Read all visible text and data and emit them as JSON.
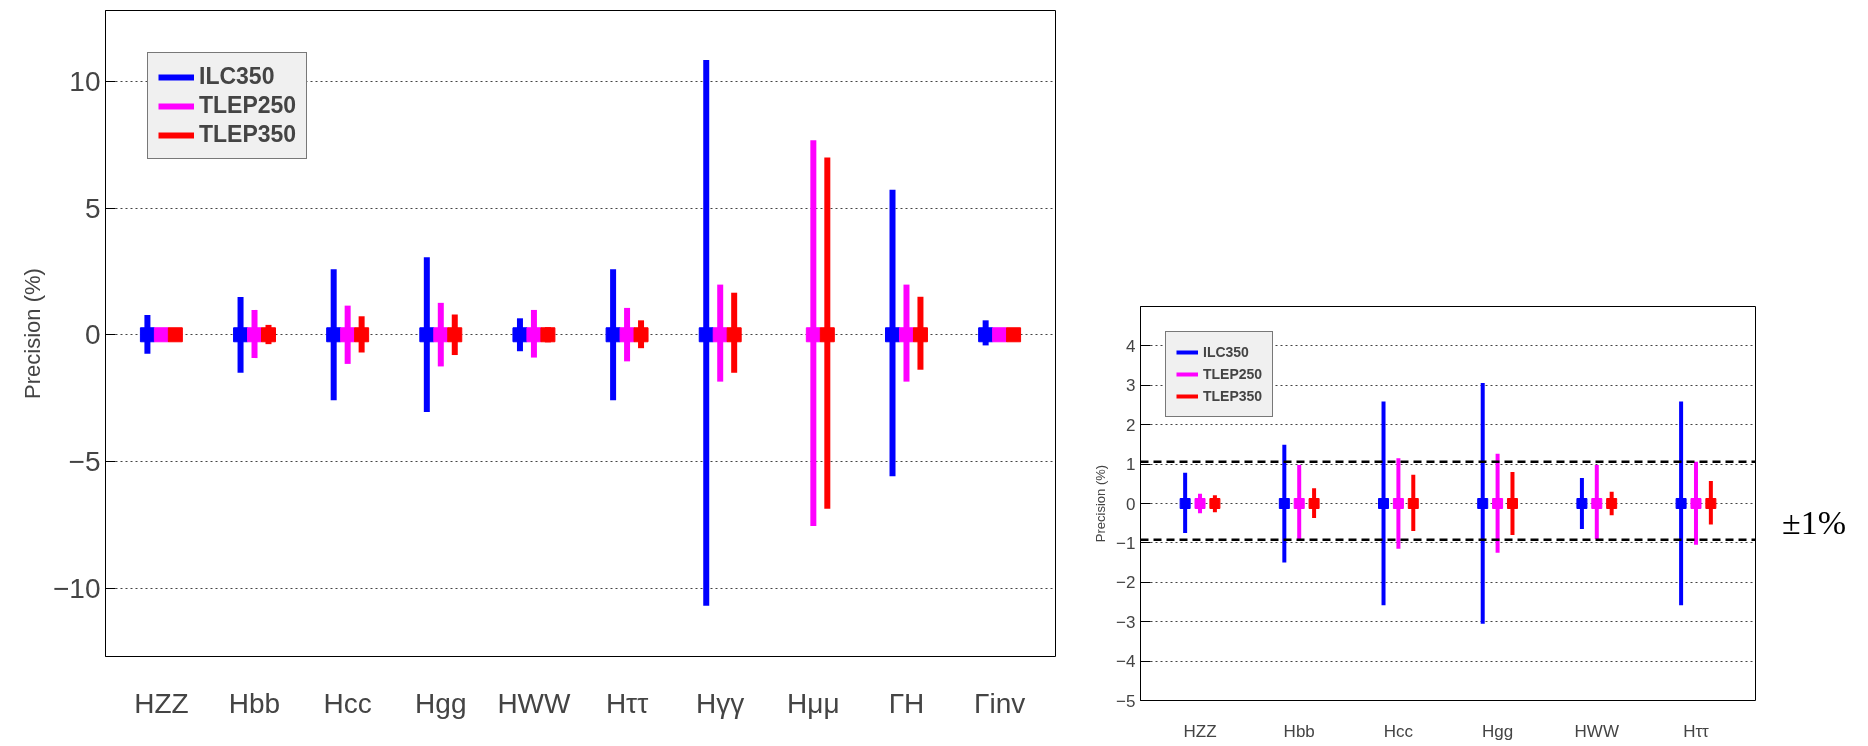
{
  "chart_data": [
    {
      "type": "scatter",
      "ylabel": "Precision (%)",
      "categories": [
        "HZZ",
        "Hbb",
        "Hcc",
        "Hgg",
        "HWW",
        "Hττ",
        "Hγγ",
        "Hμμ",
        "ΓH",
        "Γinv"
      ],
      "series": [
        {
          "name": "ILC350",
          "color": "#0000ff",
          "values": [
            0,
            0,
            0,
            0,
            0,
            0,
            0,
            null,
            0,
            0
          ],
          "errors": [
            [
              -0.75,
              0.78
            ],
            [
              -1.5,
              1.49
            ],
            [
              -2.58,
              2.59
            ],
            [
              -3.05,
              3.06
            ],
            [
              -0.65,
              0.65
            ],
            [
              -2.58,
              2.59
            ],
            [
              -10.7,
              10.85
            ],
            null,
            [
              -5.58,
              5.72
            ],
            [
              -0.42,
              0.57
            ]
          ]
        },
        {
          "name": "TLEP250",
          "color": "#ff00ff",
          "values": [
            0,
            0,
            0,
            0,
            0,
            0,
            0,
            0,
            0,
            0
          ],
          "errors": [
            null,
            [
              -0.92,
              0.98
            ],
            [
              -1.15,
              1.15
            ],
            [
              -1.25,
              1.26
            ],
            [
              -0.9,
              0.98
            ],
            [
              -1.05,
              1.06
            ],
            [
              -1.85,
              1.98
            ],
            [
              -7.55,
              7.68
            ],
            [
              -1.85,
              1.98
            ],
            null
          ]
        },
        {
          "name": "TLEP350",
          "color": "#ff0000",
          "values": [
            0,
            0,
            0,
            0,
            0,
            0,
            0,
            0,
            0,
            0
          ],
          "errors": [
            null,
            [
              -0.37,
              0.39
            ],
            [
              -0.7,
              0.73
            ],
            [
              -0.8,
              0.8
            ],
            [
              -0.3,
              0.3
            ],
            [
              -0.53,
              0.57
            ],
            [
              -1.5,
              1.66
            ],
            [
              -6.87,
              7.0
            ],
            [
              -1.38,
              1.5
            ],
            null
          ]
        }
      ],
      "ylim": [
        -12.7,
        12.8
      ],
      "yticks": [
        -10,
        -5,
        0,
        5,
        10
      ],
      "grid": "y",
      "legend": "top left",
      "marker": "square"
    },
    {
      "type": "scatter",
      "ylabel": "Precision (%)",
      "categories": [
        "HZZ",
        "Hbb",
        "Hcc",
        "Hgg",
        "HWW",
        "Hττ"
      ],
      "series": [
        {
          "name": "ILC350",
          "color": "#0000ff",
          "values": [
            0,
            0,
            0,
            0,
            0,
            0
          ],
          "errors": [
            [
              -0.75,
              0.78
            ],
            [
              -1.5,
              1.49
            ],
            [
              -2.58,
              2.59
            ],
            [
              -3.05,
              3.06
            ],
            [
              -0.65,
              0.65
            ],
            [
              -2.58,
              2.59
            ]
          ]
        },
        {
          "name": "TLEP250",
          "color": "#ff00ff",
          "values": [
            0,
            0,
            0,
            0,
            0,
            0
          ],
          "errors": [
            [
              -0.25,
              0.25
            ],
            [
              -0.92,
              0.98
            ],
            [
              -1.15,
              1.15
            ],
            [
              -1.25,
              1.26
            ],
            [
              -0.9,
              0.98
            ],
            [
              -1.05,
              1.06
            ]
          ]
        },
        {
          "name": "TLEP350",
          "color": "#ff0000",
          "values": [
            0,
            0,
            0,
            0,
            0,
            0
          ],
          "errors": [
            [
              -0.22,
              0.21
            ],
            [
              -0.37,
              0.39
            ],
            [
              -0.7,
              0.73
            ],
            [
              -0.8,
              0.8
            ],
            [
              -0.3,
              0.3
            ],
            [
              -0.53,
              0.57
            ]
          ]
        }
      ],
      "ylim": [
        -5,
        5
      ],
      "yticks": [
        -5,
        -4,
        -3,
        -2,
        -1,
        0,
        1,
        2,
        3,
        4
      ],
      "ref_lines": [
        {
          "axis": "y",
          "value": 1.06,
          "color": "#000000",
          "line_style": "dashed"
        },
        {
          "axis": "y",
          "value": -0.92,
          "color": "#000000",
          "line_style": "dashed"
        }
      ],
      "annotations": [
        "±1%"
      ],
      "grid": "y",
      "legend": "top left",
      "marker": "square"
    }
  ]
}
